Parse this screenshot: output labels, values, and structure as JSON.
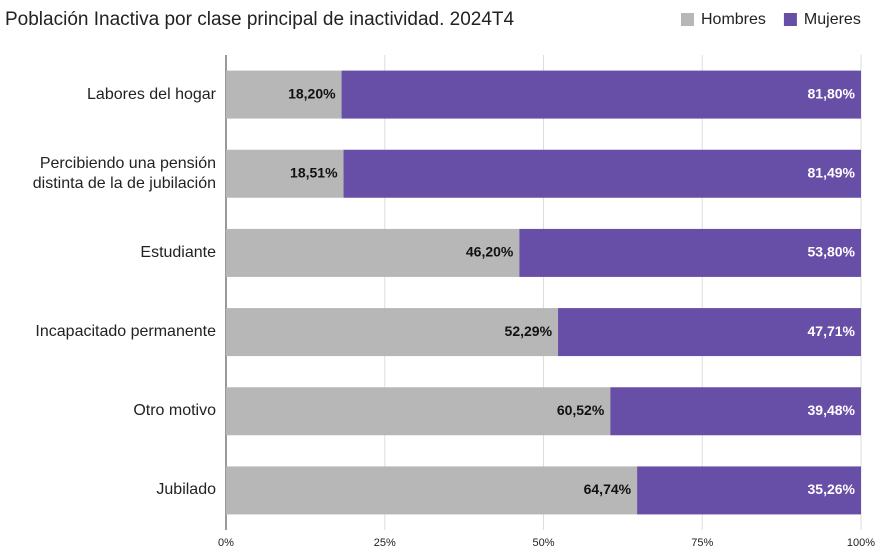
{
  "chart_data": {
    "type": "stacked_barh",
    "title": "Población Inactiva por clase principal de inactividad. 2024T4",
    "categories": [
      "Labores del hogar",
      "Percibiendo una pensión distinta de la de jubilación",
      "Estudiante",
      "Incapacitado permanente",
      "Otro motivo",
      "Jubilado"
    ],
    "series": [
      {
        "name": "Hombres",
        "color": "#b7b7b7",
        "values": [
          18.2,
          18.51,
          46.2,
          52.29,
          60.52,
          64.74
        ],
        "value_labels": [
          "18,20%",
          "18,51%",
          "46,20%",
          "52,29%",
          "60,52%",
          "64,74%"
        ]
      },
      {
        "name": "Mujeres",
        "color": "#674ea7",
        "values": [
          81.8,
          81.49,
          53.8,
          47.71,
          39.48,
          35.26
        ],
        "value_labels": [
          "81,80%",
          "81,49%",
          "53,80%",
          "47,71%",
          "39,48%",
          "35,26%"
        ]
      }
    ],
    "xlim": [
      0,
      100
    ],
    "xticks": [
      {
        "value": 0,
        "label": "0%"
      },
      {
        "value": 25,
        "label": "25%"
      },
      {
        "value": 50,
        "label": "50%"
      },
      {
        "value": 75,
        "label": "75%"
      },
      {
        "value": 100,
        "label": "100%"
      }
    ],
    "grid": true,
    "legend": "top-right"
  }
}
